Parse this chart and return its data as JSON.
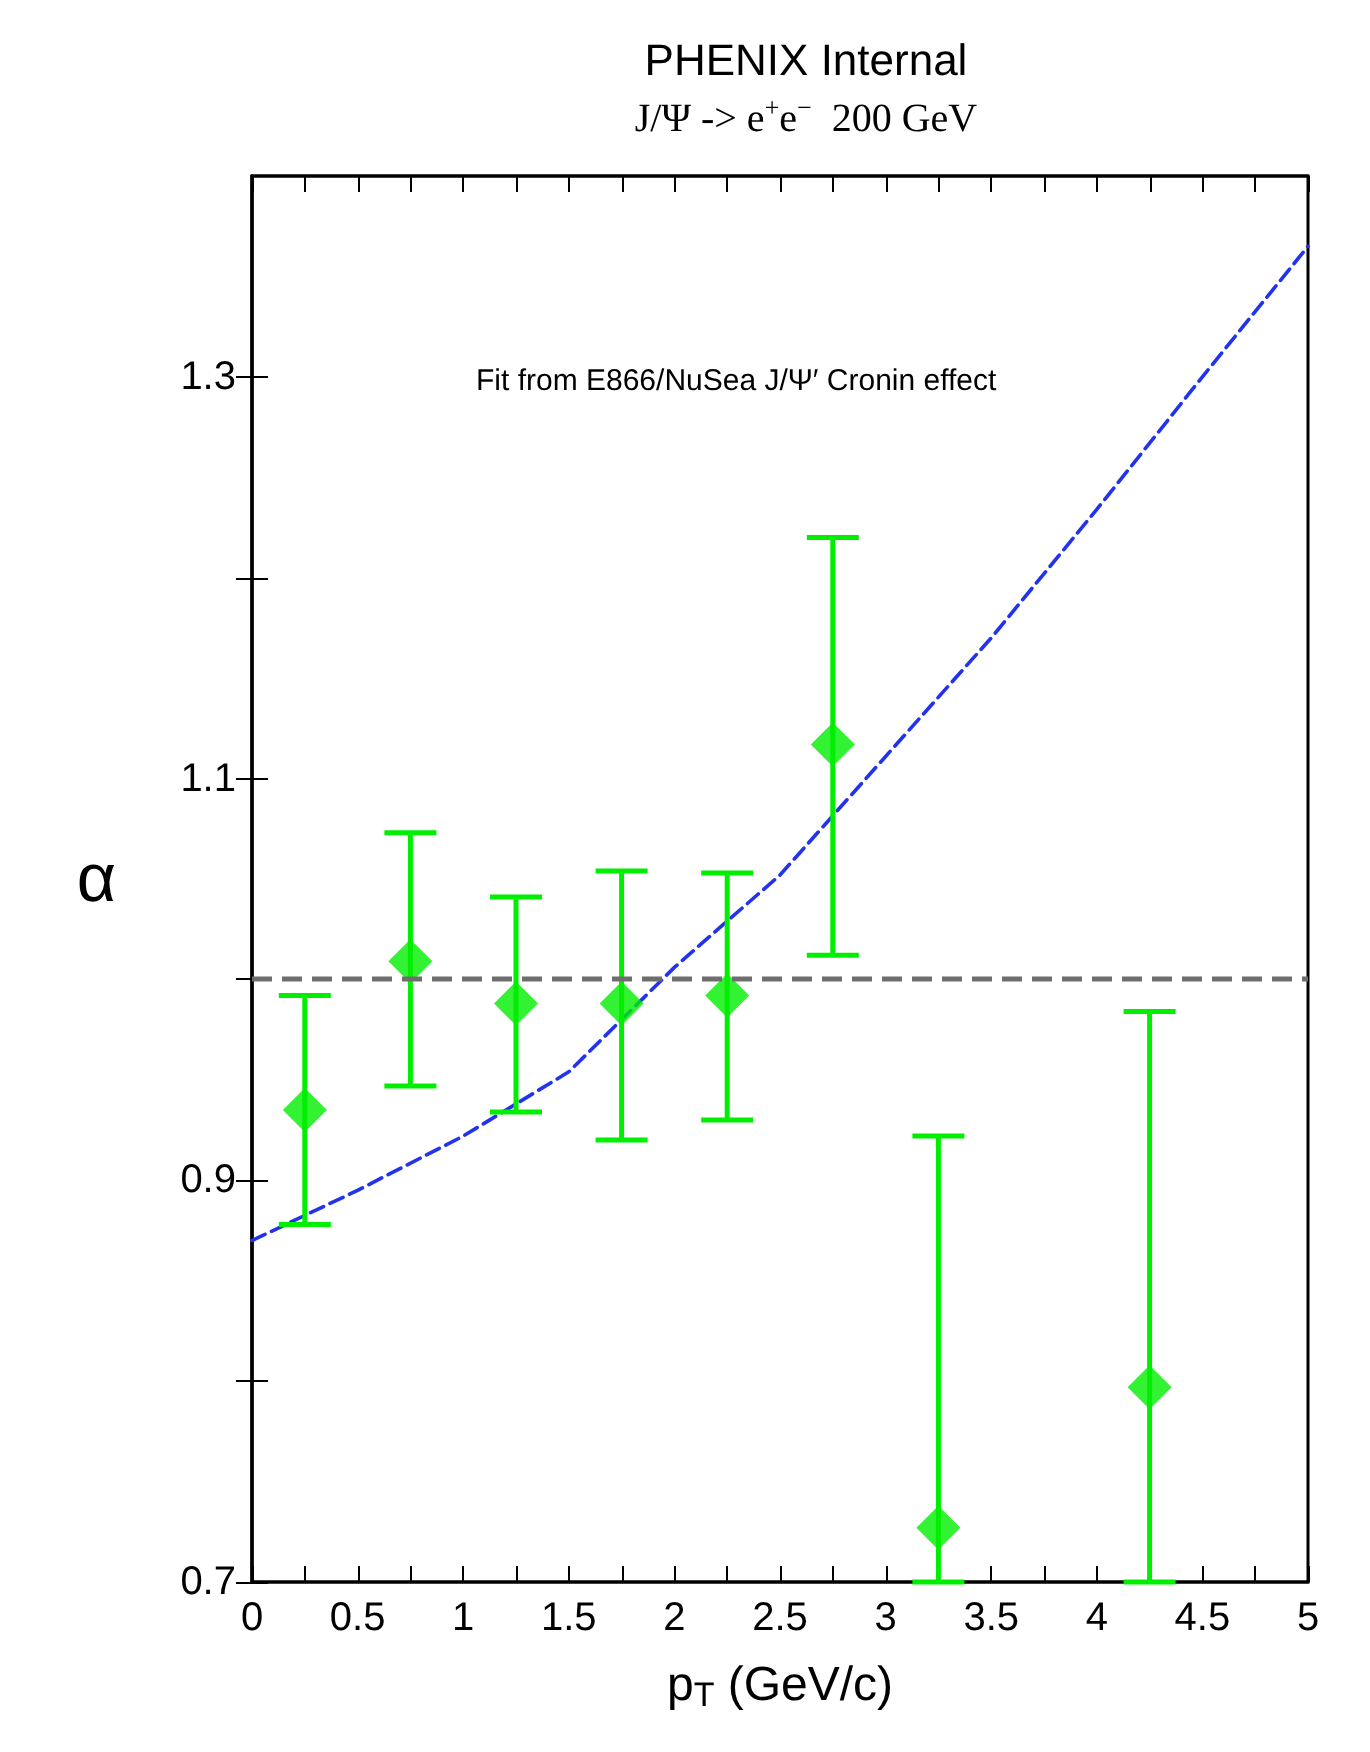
{
  "chart_data": {
    "type": "scatter",
    "title": "PHENIX Internal",
    "subtitle": "J/Ψ -> e$^{+}$e$^{−}$  200 GeV",
    "xlabel": "p$_{T}$ (GeV/c)",
    "ylabel": "α",
    "annotations": [
      "Fit from E866/NuSea J/Ψ′ Cronin effect"
    ],
    "xlim": [
      0,
      5
    ],
    "ylim": [
      0.7,
      1.4
    ],
    "xticks": [
      0,
      {
        "value": 0.25,
        "label": null
      },
      0.5,
      {
        "value": 0.75,
        "label": null
      },
      1,
      {
        "value": 1.25,
        "label": null
      },
      1.5,
      {
        "value": 1.75,
        "label": null
      },
      2,
      {
        "value": 2.25,
        "label": null
      },
      2.5,
      {
        "value": 2.75,
        "label": null
      },
      3,
      {
        "value": 3.25,
        "label": null
      },
      3.5,
      {
        "value": 3.75,
        "label": null
      },
      4,
      {
        "value": 4.25,
        "label": null
      },
      4.5,
      {
        "value": 4.75,
        "label": null
      },
      5
    ],
    "yticks": [
      0.7,
      {
        "value": 0.8,
        "label": null
      },
      0.9,
      {
        "value": 1.0,
        "label": null
      },
      1.1,
      {
        "value": 1.2,
        "label": null
      },
      1.3
    ],
    "grid": false,
    "legend": false,
    "ref_lines": [
      {
        "axis": "y",
        "value": 1.0,
        "label": null,
        "color": "#6e6e6e",
        "line_style": "dashed"
      }
    ],
    "series": [
      {
        "color": "#00ee00",
        "marker": "diamond",
        "x": [
          0.25,
          0.75,
          1.25,
          1.75,
          2.25,
          2.75,
          3.25,
          4.25
        ],
        "values": [
          0.935,
          1.009,
          0.988,
          0.988,
          0.992,
          1.117,
          0.727,
          0.797
        ],
        "errors": [
          [
            0.878,
            0.992
          ],
          [
            0.947,
            1.073
          ],
          [
            0.934,
            1.041
          ],
          [
            0.92,
            1.054
          ],
          [
            0.93,
            1.053
          ],
          [
            1.012,
            1.22
          ],
          [
            0.7,
            0.922
          ],
          [
            0.7,
            0.984
          ]
        ]
      },
      {
        "type": "line",
        "color": "#2233ee",
        "line_style": "dashed",
        "marker": "none",
        "x": [
          0,
          0.5,
          1,
          1.5,
          2,
          2.5,
          3,
          3.5,
          4,
          4.5,
          5
        ],
        "values": [
          0.87,
          0.895,
          0.922,
          0.954,
          1.006,
          1.052,
          1.111,
          1.17,
          1.234,
          1.3,
          1.365
        ]
      }
    ]
  }
}
